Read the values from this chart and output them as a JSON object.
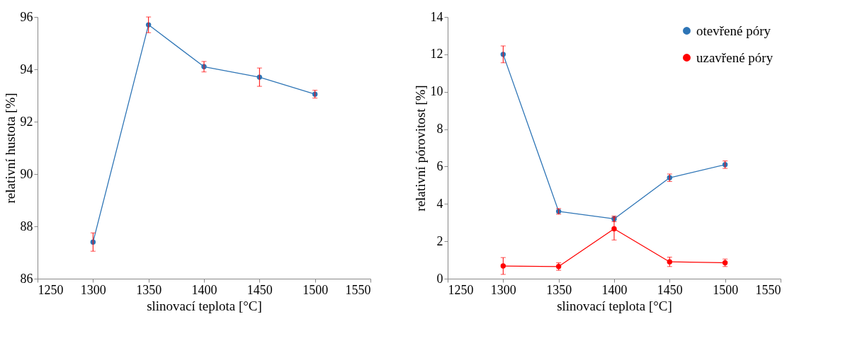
{
  "chart_data": [
    {
      "type": "line",
      "xlabel": "slinovací teplota [°C]",
      "ylabel": "relativní  hustota [%]",
      "x": [
        1300,
        1350,
        1400,
        1450,
        1500
      ],
      "xlim": [
        1250,
        1550
      ],
      "xticks": [
        1250,
        1300,
        1350,
        1400,
        1450,
        1500,
        1550
      ],
      "ylim": [
        86,
        96
      ],
      "yticks": [
        86,
        88,
        90,
        92,
        94,
        96
      ],
      "grid": false,
      "marker": "circle",
      "series": [
        {
          "color": "#2e75b6",
          "values": [
            87.4,
            95.7,
            94.1,
            93.7,
            93.05
          ],
          "errors": [
            0.35,
            0.3,
            0.2,
            0.35,
            0.15
          ]
        }
      ]
    },
    {
      "type": "line",
      "xlabel": "slinovací teplota [°C]",
      "ylabel": "relativní  pórovitost [%]",
      "x": [
        1300,
        1350,
        1400,
        1450,
        1500
      ],
      "xlim": [
        1250,
        1550
      ],
      "xticks": [
        1250,
        1300,
        1350,
        1400,
        1450,
        1500,
        1550
      ],
      "ylim": [
        0,
        14
      ],
      "yticks": [
        0,
        2,
        4,
        6,
        8,
        10,
        12,
        14
      ],
      "grid": false,
      "legend": "top right",
      "marker": "circle",
      "series": [
        {
          "name": "otevřené póry",
          "color": "#2e75b6",
          "values": [
            12.0,
            3.6,
            3.2,
            5.4,
            6.1
          ],
          "errors": [
            0.45,
            0.15,
            0.15,
            0.2,
            0.2
          ]
        },
        {
          "name": "uzavřené póry",
          "color": "#ff0000",
          "values": [
            0.68,
            0.65,
            2.67,
            0.9,
            0.85
          ],
          "errors": [
            0.45,
            0.2,
            0.6,
            0.25,
            0.2
          ]
        }
      ]
    }
  ]
}
